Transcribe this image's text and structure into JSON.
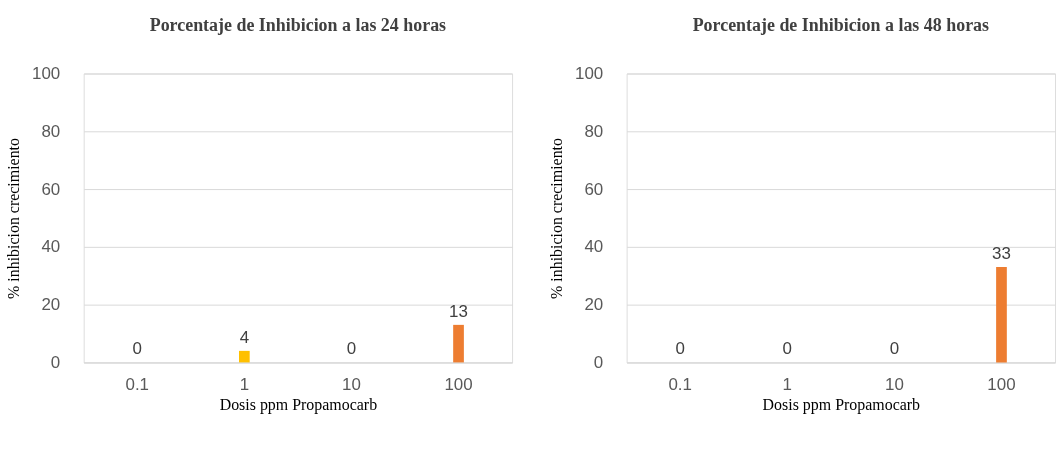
{
  "chart_data": [
    {
      "type": "bar",
      "title": "Porcentaje de Inhibicion a las 24 horas",
      "xlabel": "Dosis ppm Propamocarb",
      "ylabel": "% inhibicion crecimiento",
      "categories": [
        "0.1",
        "1",
        "10",
        "100"
      ],
      "values": [
        0,
        4,
        0,
        13
      ],
      "colors": [
        "#5b9bd5",
        "#ffc000",
        "#a5a5a5",
        "#ed7d31"
      ],
      "ylim": [
        0,
        100
      ],
      "yticks": [
        0,
        20,
        40,
        60,
        80,
        100
      ],
      "grid": "y",
      "data_labels": true
    },
    {
      "type": "bar",
      "title": "Porcentaje de Inhibicion a las 48 horas",
      "xlabel": "Dosis ppm Propamocarb",
      "ylabel": "% inhibicion crecimiento",
      "categories": [
        "0.1",
        "1",
        "10",
        "100"
      ],
      "values": [
        0,
        0,
        0,
        33
      ],
      "colors": [
        "#5b9bd5",
        "#ffc000",
        "#a5a5a5",
        "#ed7d31"
      ],
      "ylim": [
        0,
        100
      ],
      "yticks": [
        0,
        20,
        40,
        60,
        80,
        100
      ],
      "grid": "y",
      "data_labels": true
    }
  ]
}
